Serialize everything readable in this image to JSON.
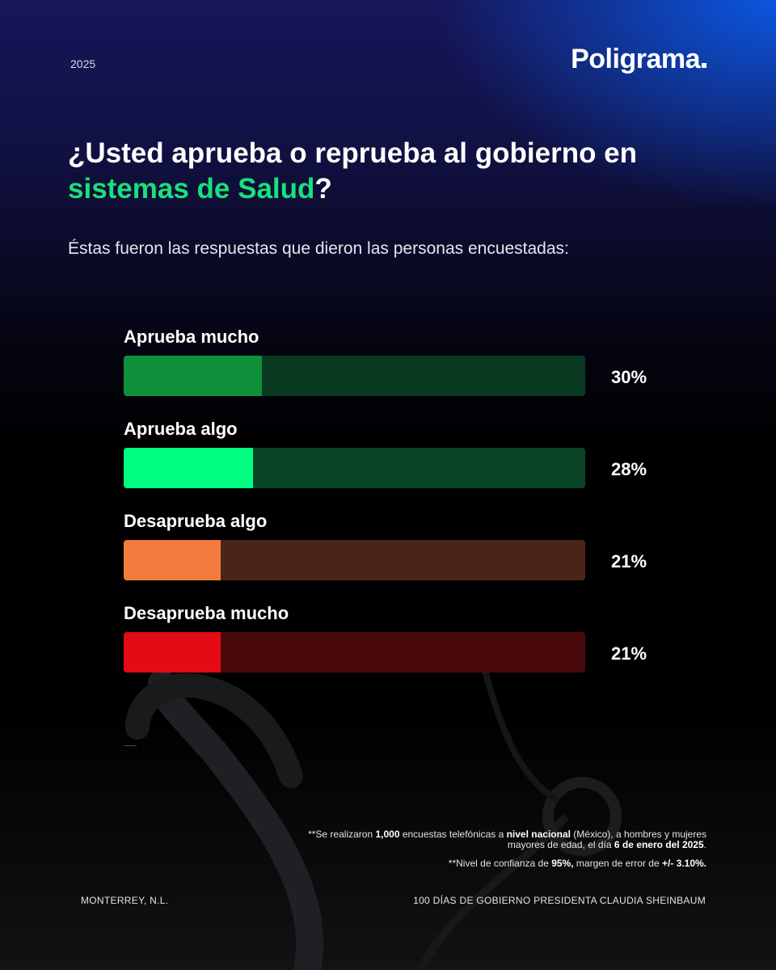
{
  "header": {
    "year": "2025",
    "logo": "Poligrama"
  },
  "headline": {
    "title_start": "¿Usted aprueba o reprueba al gobierno en",
    "title_accent": "sistemas de Salud",
    "title_end": "?",
    "subtitle": "Éstas fueron las respuestas que dieron las personas encuestadas:"
  },
  "colors": {
    "title_accent": "#19e07a",
    "background_top": "#17165a",
    "background_bottom": "#000000"
  },
  "chart_data": {
    "type": "bar",
    "orientation": "horizontal",
    "categories": [
      "Aprueba mucho",
      "Aprueba algo",
      "Desaprueba algo",
      "Desaprueba mucho"
    ],
    "values": [
      30,
      28,
      21,
      21
    ],
    "value_labels": [
      "30%",
      "28%",
      "21%",
      "21%"
    ],
    "unit": "%",
    "xlim": [
      0,
      100
    ],
    "colors": [
      "#0f8f3b",
      "#00ff80",
      "#f47b3e",
      "#e30b14"
    ],
    "track_colors": [
      "#0b3a22",
      "#0a4528",
      "#4a2418",
      "#4a0a0d"
    ],
    "grid": false,
    "legend": "none"
  },
  "footnotes": {
    "survey_part1": "**Se realizaron ",
    "survey_bold1": "1,000",
    "survey_part2": " encuestas telefónicas a ",
    "survey_bold2": "nivel nacional",
    "survey_part3": " (México), a hombres y mujeres mayores de edad, el día ",
    "survey_bold3": "6 de enero del 2025",
    "survey_part4": ".",
    "confidence_part1": "**Nivel de confianza de ",
    "confidence_bold1": "95%,",
    "confidence_part2": " margen de error de ",
    "confidence_bold2": "+/- 3.10%."
  },
  "footer": {
    "location": "MONTERREY, N.L.",
    "campaign": "100 DÍAS DE GOBIERNO PRESIDENTA CLAUDIA SHEINBAUM"
  }
}
